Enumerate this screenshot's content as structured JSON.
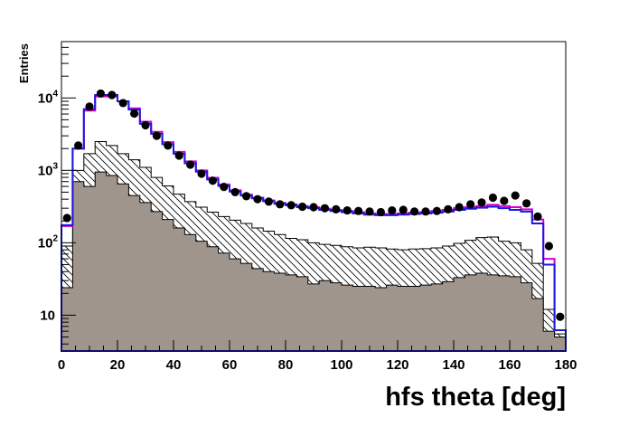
{
  "chart_data": {
    "type": "histogram",
    "xlabel": "hfs theta [deg]",
    "ylabel": "Entries",
    "xlim": [
      0,
      180
    ],
    "ylim": [
      3.2,
      60000
    ],
    "y_scale": "log",
    "bin_width": 4,
    "x_ticks": [
      0,
      20,
      40,
      60,
      80,
      100,
      120,
      140,
      160,
      180
    ],
    "y_ticks": [
      {
        "value": 10,
        "label": "10",
        "exp": ""
      },
      {
        "value": 100,
        "label": "10",
        "exp": "2"
      },
      {
        "value": 1000,
        "label": "10",
        "exp": "3"
      },
      {
        "value": 10000,
        "label": "10",
        "exp": "4"
      }
    ],
    "grid": false,
    "legend": "none",
    "colors": {
      "blue_line": "#1a1adb",
      "magenta_line": "#d500d5",
      "data_points": "#000000",
      "filled_hist": "#a0958c",
      "hatched_hist_outline": "#000000"
    },
    "series": [
      {
        "kind": "points",
        "x": [
          2,
          6,
          10,
          14,
          18,
          22,
          26,
          30,
          34,
          38,
          42,
          46,
          50,
          54,
          58,
          62,
          66,
          70,
          74,
          78,
          82,
          86,
          90,
          94,
          98,
          102,
          106,
          110,
          114,
          118,
          122,
          126,
          130,
          134,
          138,
          142,
          146,
          150,
          154,
          158,
          162,
          166,
          170,
          174,
          178
        ],
        "y": [
          220,
          2200,
          7600,
          11500,
          11000,
          8500,
          6100,
          4200,
          3000,
          2200,
          1600,
          1200,
          900,
          720,
          590,
          500,
          440,
          400,
          370,
          340,
          330,
          315,
          310,
          300,
          290,
          280,
          275,
          270,
          265,
          280,
          285,
          270,
          270,
          275,
          290,
          310,
          340,
          360,
          420,
          380,
          450,
          350,
          230,
          90,
          9.5
        ]
      },
      {
        "kind": "step",
        "x": [
          2,
          6,
          10,
          14,
          18,
          22,
          26,
          30,
          34,
          38,
          42,
          46,
          50,
          54,
          58,
          62,
          66,
          70,
          74,
          78,
          82,
          86,
          90,
          94,
          98,
          102,
          106,
          110,
          114,
          118,
          122,
          126,
          130,
          134,
          138,
          142,
          146,
          150,
          154,
          158,
          162,
          166,
          170,
          174,
          178
        ],
        "y": [
          175,
          2000,
          7000,
          11000,
          11000,
          9000,
          6900,
          4400,
          3200,
          2300,
          1700,
          1250,
          960,
          750,
          610,
          510,
          450,
          410,
          375,
          345,
          330,
          310,
          300,
          285,
          275,
          265,
          255,
          245,
          240,
          240,
          245,
          250,
          255,
          260,
          270,
          285,
          295,
          305,
          315,
          300,
          285,
          270,
          185,
          50,
          6.2
        ]
      },
      {
        "kind": "step",
        "x": [
          2,
          6,
          10,
          14,
          18,
          22,
          26,
          30,
          34,
          38,
          42,
          46,
          50,
          54,
          58,
          62,
          66,
          70,
          74,
          78,
          82,
          86,
          90,
          94,
          98,
          102,
          106,
          110,
          114,
          118,
          122,
          126,
          130,
          134,
          138,
          142,
          146,
          150,
          154,
          158,
          162,
          166,
          170,
          174,
          178
        ],
        "y": [
          170,
          2000,
          6700,
          10500,
          10500,
          9000,
          7200,
          4700,
          3400,
          2450,
          1800,
          1330,
          1000,
          790,
          640,
          530,
          460,
          420,
          385,
          355,
          340,
          320,
          310,
          295,
          285,
          275,
          265,
          255,
          250,
          250,
          255,
          260,
          265,
          275,
          285,
          300,
          310,
          320,
          335,
          320,
          310,
          290,
          210,
          60,
          6.2
        ]
      },
      {
        "kind": "hatched",
        "x": [
          2,
          6,
          10,
          14,
          18,
          22,
          26,
          30,
          34,
          38,
          42,
          46,
          50,
          54,
          58,
          62,
          66,
          70,
          74,
          78,
          82,
          86,
          90,
          94,
          98,
          102,
          106,
          110,
          114,
          118,
          122,
          126,
          130,
          134,
          138,
          142,
          146,
          150,
          154,
          158,
          162,
          166,
          170,
          174,
          178
        ],
        "y": [
          90,
          1000,
          1700,
          2500,
          2200,
          1700,
          1400,
          1100,
          800,
          610,
          470,
          370,
          310,
          265,
          230,
          205,
          185,
          160,
          145,
          130,
          115,
          110,
          100,
          95,
          92,
          88,
          85,
          87,
          85,
          82,
          80,
          82,
          83,
          85,
          90,
          98,
          108,
          118,
          120,
          105,
          100,
          80,
          52,
          12,
          5.5
        ]
      },
      {
        "kind": "filled",
        "x": [
          2,
          6,
          10,
          14,
          18,
          22,
          26,
          30,
          34,
          38,
          42,
          46,
          50,
          54,
          58,
          62,
          66,
          70,
          74,
          78,
          82,
          86,
          90,
          94,
          98,
          102,
          106,
          110,
          114,
          118,
          122,
          126,
          130,
          134,
          138,
          142,
          146,
          150,
          154,
          158,
          162,
          166,
          170,
          174,
          178
        ],
        "y": [
          24,
          700,
          600,
          950,
          850,
          650,
          450,
          360,
          270,
          210,
          160,
          130,
          105,
          88,
          72,
          60,
          52,
          44,
          40,
          38,
          36,
          34,
          27,
          30,
          28,
          26,
          25,
          25,
          24,
          26,
          25,
          25,
          26,
          27,
          29,
          33,
          36,
          38,
          36,
          35,
          34,
          28,
          17,
          6,
          5
        ]
      }
    ]
  }
}
